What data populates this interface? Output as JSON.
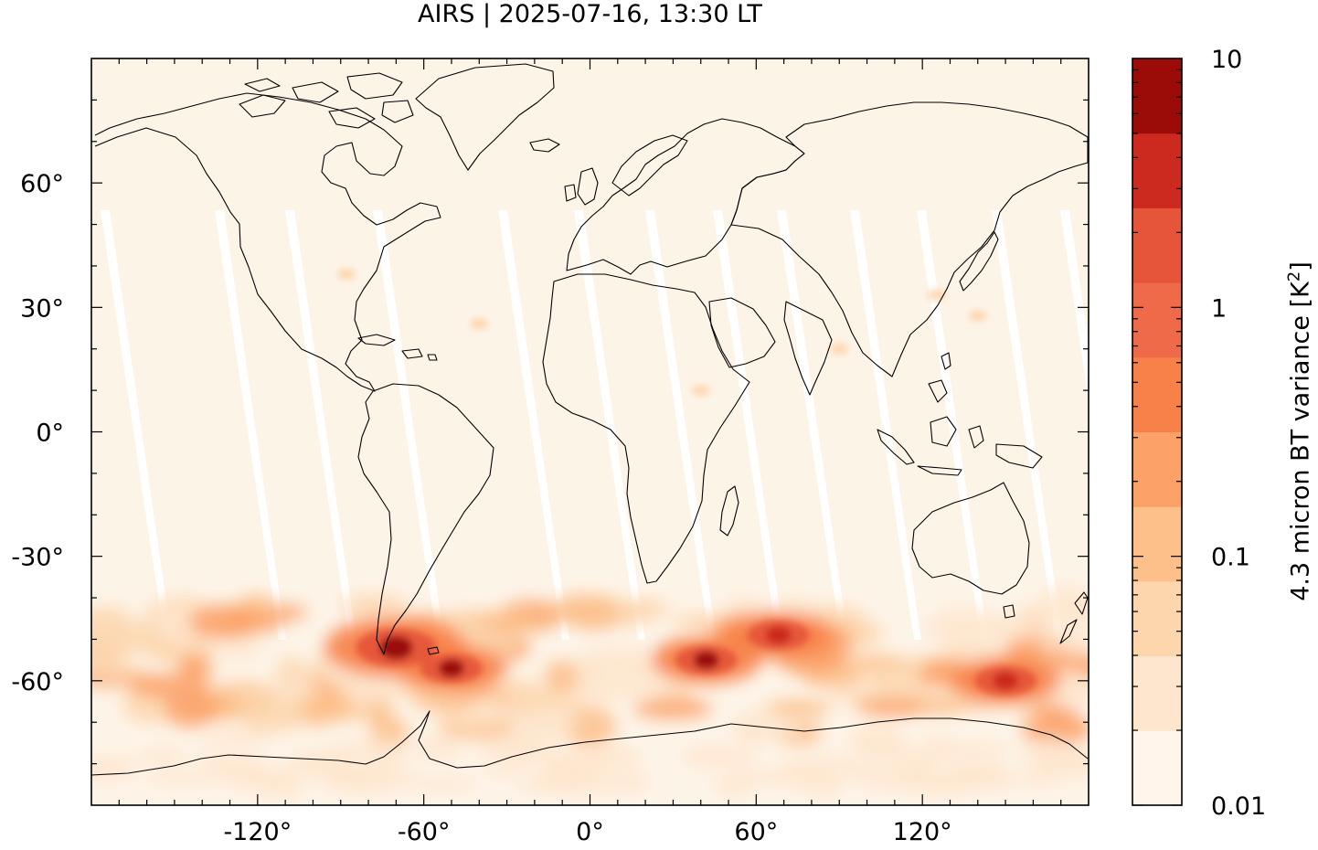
{
  "title": "AIRS | 2025-07-16, 13:30 LT",
  "map": {
    "projection": "equirectangular",
    "lon_range": [
      -180,
      180
    ],
    "lat_range": [
      -90,
      90
    ],
    "x_ticks": [
      {
        "value": -120,
        "label": "-120°"
      },
      {
        "value": -60,
        "label": "-60°"
      },
      {
        "value": 0,
        "label": "0°"
      },
      {
        "value": 60,
        "label": "60°"
      },
      {
        "value": 120,
        "label": "120°"
      }
    ],
    "y_ticks": [
      {
        "value": 60,
        "label": "60°"
      },
      {
        "value": 30,
        "label": "30°"
      },
      {
        "value": 0,
        "label": "0°"
      },
      {
        "value": -30,
        "label": "-30°"
      },
      {
        "value": -60,
        "label": "-60°"
      }
    ],
    "background_level_color": "#fdf4e8",
    "swath_gap_color": "#ffffff",
    "high_variance_region": "Southern Hemisphere 40°S–75°S",
    "hotspots": [
      {
        "name": "Southern Andes / Drake Passage",
        "lon": -70,
        "lat": -52
      },
      {
        "name": "South Georgia / Scotia Sea",
        "lon": -50,
        "lat": -57
      },
      {
        "name": "Southern Ocean south of Africa",
        "lon": 42,
        "lat": -55
      },
      {
        "name": "Kerguelen area",
        "lon": 68,
        "lat": -49
      },
      {
        "name": "Southern Ocean south of Australia",
        "lon": 150,
        "lat": -60
      }
    ]
  },
  "colorbar": {
    "label": "4.3 micron BT variance [K",
    "label_sup": "2",
    "label_end": "]",
    "scale": "log",
    "range": [
      0.01,
      10
    ],
    "tick_labels": [
      {
        "value": 10,
        "label": "10"
      },
      {
        "value": 1,
        "label": "1"
      },
      {
        "value": 0.1,
        "label": "0.1"
      },
      {
        "value": 0.01,
        "label": "0.01"
      }
    ],
    "levels": [
      {
        "from": 0.01,
        "to": 0.02,
        "color": "#fff5eb"
      },
      {
        "from": 0.02,
        "to": 0.04,
        "color": "#fee6ce"
      },
      {
        "from": 0.04,
        "to": 0.07,
        "color": "#fdd6ae"
      },
      {
        "from": 0.07,
        "to": 0.15,
        "color": "#fdc08b"
      },
      {
        "from": 0.15,
        "to": 0.3,
        "color": "#fca167"
      },
      {
        "from": 0.3,
        "to": 0.6,
        "color": "#f78148"
      },
      {
        "from": 0.6,
        "to": 1.2,
        "color": "#ee6a48"
      },
      {
        "from": 1.2,
        "to": 2.5,
        "color": "#e6553a"
      },
      {
        "from": 2.5,
        "to": 5,
        "color": "#cc2a1e"
      },
      {
        "from": 5,
        "to": 10,
        "color": "#9b0c08"
      }
    ]
  }
}
